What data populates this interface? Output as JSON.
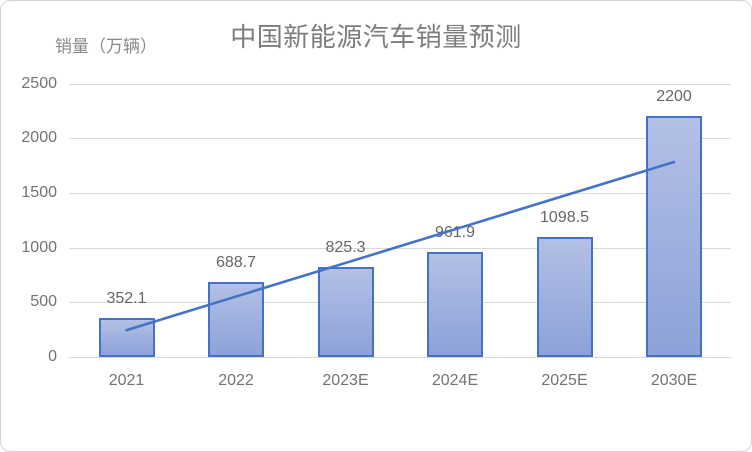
{
  "chart": {
    "title": "中国新能源汽车销量预测",
    "y_axis_title": "销量（万辆）",
    "colors": {
      "bar_fill_top": "#b3c0e6",
      "bar_fill_bottom": "#8da2d9",
      "bar_border": "#4472c4",
      "trend_line": "#4472c4",
      "gridline": "#d9d9d9",
      "tick_text": "#737373",
      "title_text": "#7d7d7d"
    }
  },
  "chart_data": {
    "type": "combo",
    "title": "中国新能源汽车销量预测",
    "ylabel": "销量（万辆）",
    "xlabel": "",
    "categories": [
      "2021",
      "2022",
      "2023E",
      "2024E",
      "2025E",
      "2030E"
    ],
    "series": [
      {
        "name": "销量",
        "type": "bar",
        "values": [
          352.1,
          688.7,
          825.3,
          961.9,
          1098.5,
          2200
        ]
      },
      {
        "name": "趋势线",
        "type": "line",
        "values": [
          245,
          552.4,
          859.8,
          1167.2,
          1474.6,
          1782
        ]
      }
    ],
    "data_labels": [
      "352.1",
      "688.7",
      "825.3",
      "961.9",
      "1098.5",
      "2200"
    ],
    "y_ticks": [
      0,
      500,
      1000,
      1500,
      2000,
      2500
    ],
    "ylim": [
      0,
      2500
    ],
    "grid": true,
    "legend": false
  }
}
